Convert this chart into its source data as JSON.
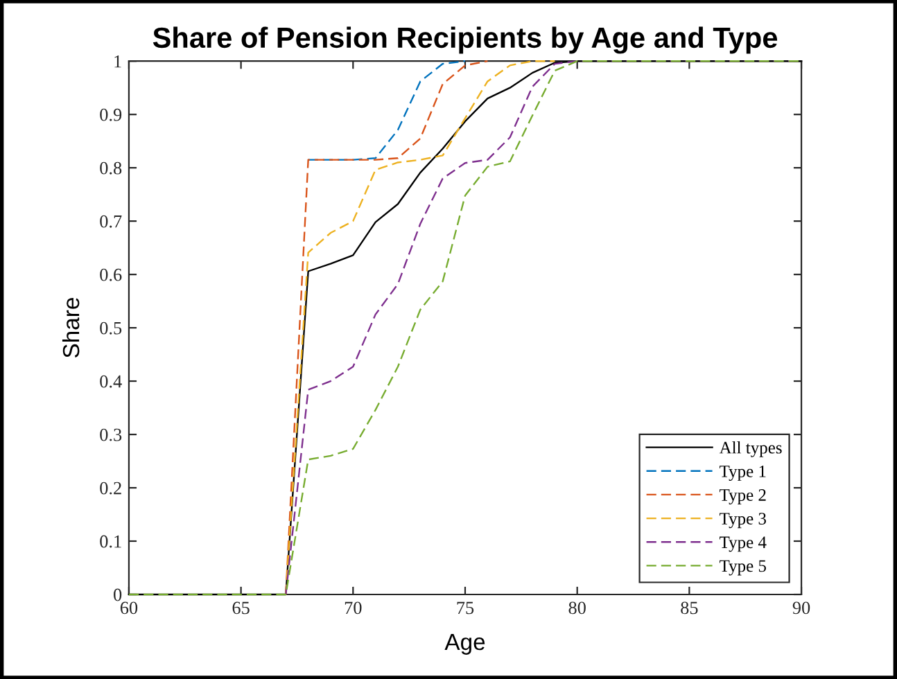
{
  "chart_data": {
    "type": "line",
    "title": "Share of Pension Recipients by Age and Type",
    "xlabel": "Age",
    "ylabel": "Share",
    "x": [
      60,
      61,
      62,
      63,
      64,
      65,
      66,
      67,
      68,
      69,
      70,
      71,
      72,
      73,
      74,
      75,
      76,
      77,
      78,
      79,
      80,
      81,
      82,
      83,
      84,
      85,
      86,
      87,
      88,
      89,
      90
    ],
    "series": [
      {
        "name": "All types",
        "color": "#000000",
        "line_style": "solid",
        "values": [
          0,
          0,
          0,
          0,
          0,
          0,
          0,
          0,
          0.606,
          0.62,
          0.636,
          0.698,
          0.732,
          0.791,
          0.836,
          0.887,
          0.93,
          0.95,
          0.978,
          0.997,
          1,
          1,
          1,
          1,
          1,
          1,
          1,
          1,
          1,
          1,
          1
        ]
      },
      {
        "name": "Type 1",
        "color": "#0072bd",
        "line_style": "dashed",
        "values": [
          null,
          null,
          null,
          null,
          null,
          null,
          null,
          null,
          0.815,
          0.815,
          0.815,
          0.818,
          0.871,
          0.962,
          0.995,
          1,
          null,
          null,
          null,
          null,
          null,
          null,
          null,
          null,
          null,
          null,
          null,
          null,
          null,
          null,
          null
        ]
      },
      {
        "name": "Type 2",
        "color": "#d95319",
        "line_style": "dashed",
        "values": [
          null,
          null,
          null,
          null,
          null,
          null,
          null,
          0,
          0.815,
          0.815,
          0.815,
          0.815,
          0.818,
          0.855,
          0.957,
          0.992,
          1,
          null,
          null,
          null,
          null,
          null,
          null,
          null,
          null,
          null,
          null,
          null,
          null,
          null,
          null
        ]
      },
      {
        "name": "Type 3",
        "color": "#edb120",
        "line_style": "dashed",
        "values": [
          null,
          null,
          null,
          null,
          null,
          null,
          null,
          0,
          0.641,
          0.678,
          0.7,
          0.796,
          0.81,
          0.815,
          0.823,
          0.893,
          0.962,
          0.992,
          1,
          1,
          null,
          null,
          null,
          null,
          null,
          null,
          null,
          null,
          null,
          null,
          null
        ]
      },
      {
        "name": "Type 4",
        "color": "#7e2f8e",
        "line_style": "dashed",
        "values": [
          null,
          null,
          null,
          null,
          null,
          null,
          null,
          0,
          0.384,
          0.4,
          0.427,
          0.525,
          0.582,
          0.695,
          0.78,
          0.809,
          0.815,
          0.857,
          0.952,
          0.995,
          1,
          1,
          1,
          1,
          1,
          1,
          1,
          1,
          1,
          1,
          1
        ]
      },
      {
        "name": "Type 5",
        "color": "#77ac30",
        "line_style": "dashed",
        "values": [
          0,
          0,
          0,
          0,
          0,
          0,
          0,
          0,
          0.253,
          0.26,
          0.273,
          0.346,
          0.427,
          0.534,
          0.587,
          0.748,
          0.802,
          0.812,
          0.898,
          0.982,
          1,
          1,
          1,
          1,
          1,
          1,
          1,
          1,
          1,
          1,
          1
        ]
      }
    ],
    "xlim": [
      60,
      90
    ],
    "xticks": [
      60,
      65,
      70,
      75,
      80,
      85,
      90
    ],
    "ylim": [
      0,
      1
    ],
    "yticks": [
      0,
      0.1,
      0.2,
      0.3,
      0.4,
      0.5,
      0.6,
      0.7,
      0.8,
      0.9,
      1
    ],
    "grid": false,
    "legend": "bottom right",
    "marker": "none"
  }
}
